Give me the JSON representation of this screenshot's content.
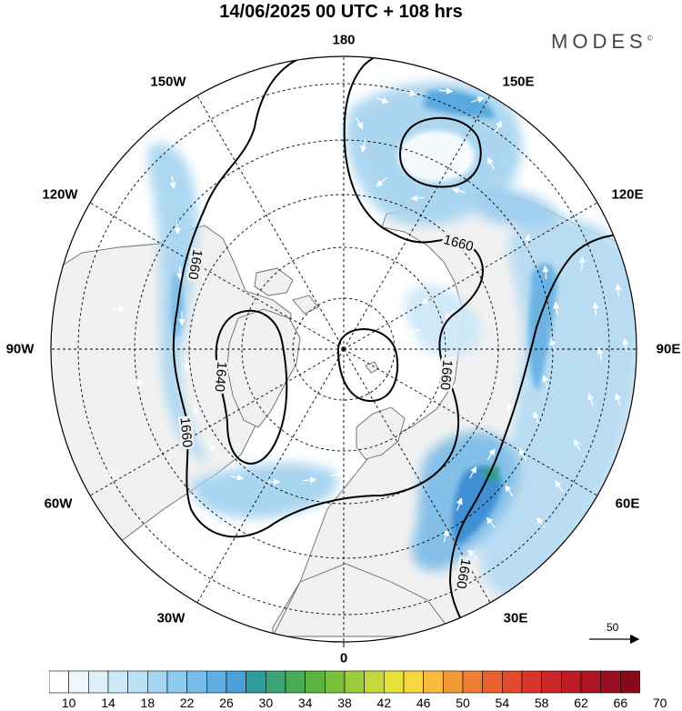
{
  "header": {
    "title": "14/06/2025  00 UTC  + 108 hrs",
    "brand": "MODES",
    "brand_mark": "©"
  },
  "map": {
    "projection": "north-polar-stereographic",
    "center": "North Pole",
    "longitude_labels": [
      "180",
      "150E",
      "120E",
      "90E",
      "60E",
      "30E",
      "0",
      "30W",
      "60W",
      "90W",
      "120W",
      "150W"
    ],
    "contour_labels": [
      "1660",
      "1660",
      "1660",
      "1660",
      "1640",
      "1660"
    ],
    "contour_color": "#000000",
    "land_color": "#f2f2f2",
    "ocean_color": "#ffffff",
    "grid_style": "dashed",
    "wind_arrows": "white"
  },
  "reference_vector": {
    "label": "50"
  },
  "colorbar": {
    "values": [
      10,
      12,
      14,
      16,
      18,
      20,
      22,
      24,
      26,
      28,
      30,
      32,
      34,
      36,
      38,
      40,
      42,
      44,
      46,
      48,
      50,
      52,
      54,
      56,
      58,
      60,
      62,
      64,
      66,
      68,
      70
    ],
    "tick_labels": [
      "10",
      "14",
      "18",
      "22",
      "26",
      "30",
      "34",
      "38",
      "42",
      "46",
      "50",
      "54",
      "58",
      "62",
      "66",
      "70"
    ],
    "colors": [
      "#ffffff",
      "#eef7fc",
      "#dff0fa",
      "#cde9f8",
      "#b9e0f5",
      "#a4d5f1",
      "#8ecbee",
      "#77bde9",
      "#5eaee2",
      "#4aa1d9",
      "#2f9b9a",
      "#3aa377",
      "#48ac57",
      "#5bb43f",
      "#79c03a",
      "#9ccc3b",
      "#c6d83e",
      "#e8e23c",
      "#f7d73f",
      "#f8bb3f",
      "#f39a37",
      "#ef7e32",
      "#ea6130",
      "#e2492e",
      "#d8352c",
      "#cb2629",
      "#bc1c26",
      "#ab1423",
      "#990e20",
      "#86091c"
    ]
  }
}
